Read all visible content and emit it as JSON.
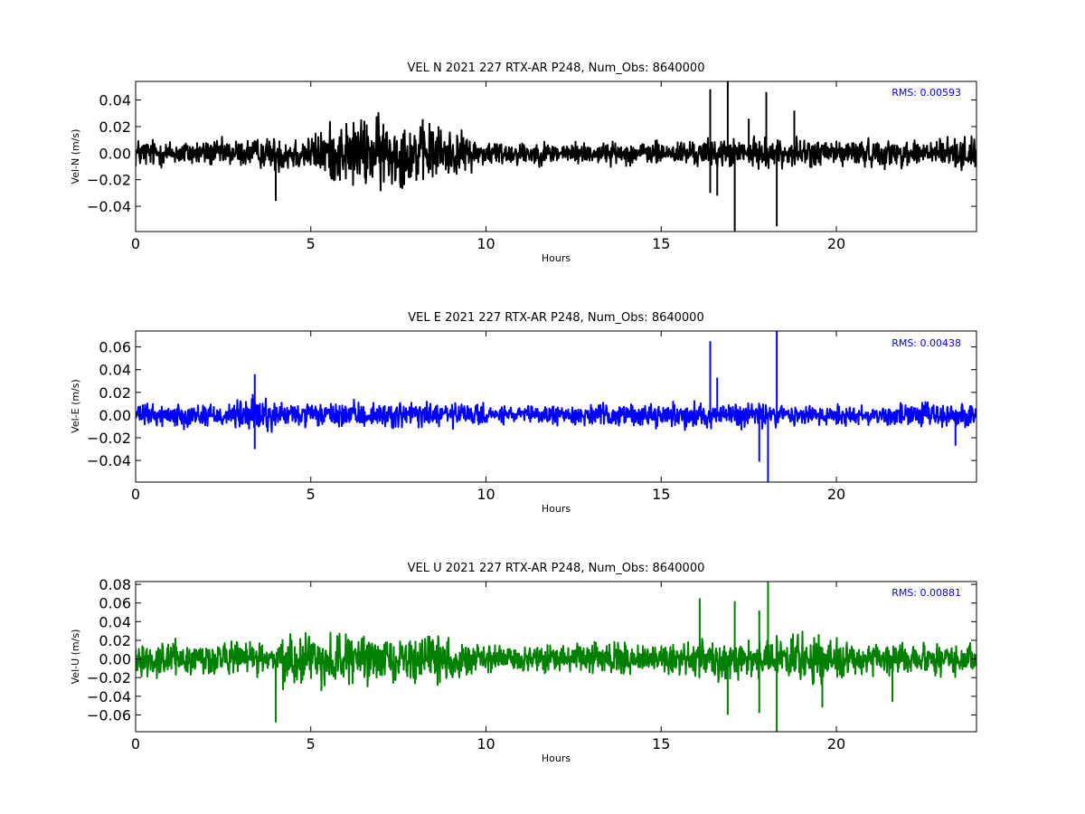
{
  "chart_data": [
    {
      "type": "line",
      "title": "VEL N 2021 227 RTX-AR  P248, Num_Obs: 8640000",
      "xlabel": "Hours",
      "ylabel": "Vel-N (m/s)",
      "xlim": [
        0,
        24
      ],
      "ylim": [
        -0.059,
        0.054
      ],
      "xticks": [
        0,
        5,
        10,
        15,
        20
      ],
      "xtick_labels": [
        "0",
        "5",
        "10",
        "15",
        "20"
      ],
      "yticks": [
        -0.04,
        -0.02,
        0.0,
        0.02,
        0.04
      ],
      "ytick_labels": [
        "−0.04",
        "−0.02",
        "0.00",
        "0.02",
        "0.04"
      ],
      "grid": false,
      "color": "#000000",
      "annotation": "RMS:  0.00593",
      "annotation_color": "#0000ff",
      "envelope": {
        "x": [
          0,
          1,
          2,
          3,
          3.9,
          4.1,
          5,
          5.5,
          6,
          6.5,
          7,
          7.5,
          8,
          8.5,
          9,
          9.5,
          10,
          11,
          12,
          13,
          14,
          15,
          16,
          17,
          18,
          19,
          20,
          21,
          22,
          23,
          24
        ],
        "amplitude": [
          0.014,
          0.012,
          0.012,
          0.013,
          0.014,
          0.018,
          0.016,
          0.026,
          0.03,
          0.032,
          0.034,
          0.03,
          0.028,
          0.028,
          0.022,
          0.016,
          0.012,
          0.011,
          0.01,
          0.01,
          0.01,
          0.011,
          0.012,
          0.013,
          0.013,
          0.013,
          0.013,
          0.012,
          0.013,
          0.014,
          0.015
        ]
      },
      "spikes": [
        {
          "x": 4.0,
          "y": -0.036
        },
        {
          "x": 16.4,
          "y": 0.048
        },
        {
          "x": 16.4,
          "y": -0.03
        },
        {
          "x": 16.6,
          "y": -0.032
        },
        {
          "x": 16.9,
          "y": 0.054
        },
        {
          "x": 17.1,
          "y": -0.059
        },
        {
          "x": 17.5,
          "y": 0.026
        },
        {
          "x": 18.0,
          "y": 0.046
        },
        {
          "x": 18.3,
          "y": -0.055
        },
        {
          "x": 18.8,
          "y": 0.032
        }
      ]
    },
    {
      "type": "line",
      "title": "VEL E 2021 227 RTX-AR  P248, Num_Obs: 8640000",
      "xlabel": "Hours",
      "ylabel": "Vel-E (m/s)",
      "xlim": [
        0,
        24
      ],
      "ylim": [
        -0.059,
        0.074
      ],
      "xticks": [
        0,
        5,
        10,
        15,
        20
      ],
      "xtick_labels": [
        "0",
        "5",
        "10",
        "15",
        "20"
      ],
      "yticks": [
        -0.04,
        -0.02,
        0.0,
        0.02,
        0.04,
        0.06
      ],
      "ytick_labels": [
        "−0.04",
        "−0.02",
        "0.00",
        "0.02",
        "0.04",
        "0.06"
      ],
      "grid": false,
      "color": "#0000ff",
      "annotation": "RMS:  0.00438",
      "annotation_color": "#0000ff",
      "envelope": {
        "x": [
          0,
          1,
          2,
          3,
          3.4,
          3.9,
          4.1,
          5,
          6,
          7,
          8,
          8.5,
          9,
          10,
          11,
          12,
          13,
          14,
          15,
          16,
          17,
          17.5,
          18,
          19,
          20,
          21,
          22,
          23,
          24
        ],
        "amplitude": [
          0.011,
          0.012,
          0.013,
          0.015,
          0.022,
          0.018,
          0.014,
          0.012,
          0.013,
          0.013,
          0.015,
          0.016,
          0.014,
          0.01,
          0.009,
          0.01,
          0.011,
          0.012,
          0.012,
          0.013,
          0.014,
          0.015,
          0.013,
          0.012,
          0.012,
          0.012,
          0.013,
          0.014,
          0.013
        ]
      },
      "spikes": [
        {
          "x": 3.4,
          "y": 0.036
        },
        {
          "x": 3.4,
          "y": -0.03
        },
        {
          "x": 16.4,
          "y": 0.065
        },
        {
          "x": 16.6,
          "y": 0.033
        },
        {
          "x": 17.8,
          "y": -0.041
        },
        {
          "x": 18.05,
          "y": -0.059
        },
        {
          "x": 18.3,
          "y": 0.074
        },
        {
          "x": 23.4,
          "y": -0.027
        }
      ]
    },
    {
      "type": "line",
      "title": "VEL U 2021 227 RTX-AR  P248, Num_Obs: 8640000",
      "xlabel": "Hours",
      "ylabel": "Vel-U (m/s)",
      "xlim": [
        0,
        24
      ],
      "ylim": [
        -0.078,
        0.083
      ],
      "xticks": [
        0,
        5,
        10,
        15,
        20
      ],
      "xtick_labels": [
        "0",
        "5",
        "10",
        "15",
        "20"
      ],
      "yticks": [
        -0.06,
        -0.04,
        -0.02,
        0.0,
        0.02,
        0.04,
        0.06,
        0.08
      ],
      "ytick_labels": [
        "−0.06",
        "−0.04",
        "−0.02",
        "0.00",
        "0.02",
        "0.04",
        "0.06",
        "0.08"
      ],
      "grid": false,
      "color": "#008000",
      "annotation": "RMS:  0.00881",
      "annotation_color": "#0000ff",
      "envelope": {
        "x": [
          0,
          1,
          2,
          3,
          3.9,
          4.1,
          5,
          6,
          7,
          8,
          9,
          10,
          11,
          12,
          13,
          14,
          15,
          16,
          17,
          18,
          19,
          19.5,
          20,
          21,
          22,
          23,
          24
        ],
        "amplitude": [
          0.02,
          0.022,
          0.024,
          0.022,
          0.016,
          0.034,
          0.036,
          0.032,
          0.026,
          0.028,
          0.03,
          0.018,
          0.016,
          0.017,
          0.02,
          0.019,
          0.018,
          0.024,
          0.026,
          0.024,
          0.03,
          0.034,
          0.026,
          0.02,
          0.018,
          0.02,
          0.022
        ]
      },
      "spikes": [
        {
          "x": 4.0,
          "y": -0.068
        },
        {
          "x": 16.1,
          "y": 0.065
        },
        {
          "x": 16.9,
          "y": -0.06
        },
        {
          "x": 17.1,
          "y": 0.062
        },
        {
          "x": 17.8,
          "y": 0.052
        },
        {
          "x": 17.8,
          "y": -0.058
        },
        {
          "x": 18.05,
          "y": 0.083
        },
        {
          "x": 18.3,
          "y": -0.078
        },
        {
          "x": 19.6,
          "y": -0.052
        },
        {
          "x": 21.6,
          "y": -0.046
        }
      ]
    }
  ]
}
